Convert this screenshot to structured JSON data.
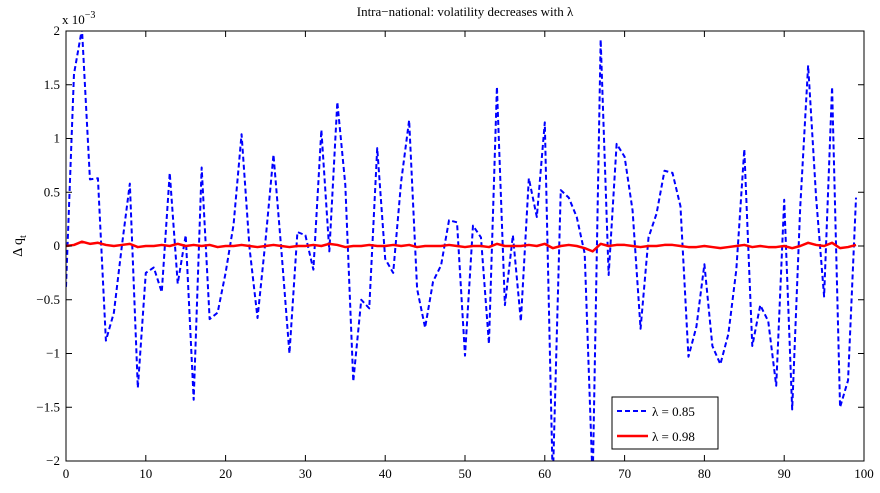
{
  "chart_data": {
    "type": "line",
    "title": "Intra−national: volatility decreases with λ",
    "xlabel": "",
    "ylabel": "Δ q",
    "ylabel_subscript": "t",
    "y_exponent_label": "x 10",
    "y_exponent_power": "−3",
    "xlim": [
      0,
      100
    ],
    "ylim": [
      -2,
      2
    ],
    "x_ticks": [
      0,
      10,
      20,
      30,
      40,
      50,
      60,
      70,
      80,
      90,
      100
    ],
    "y_ticks": [
      -2,
      -1.5,
      -1,
      -0.5,
      0,
      0.5,
      1,
      1.5,
      2
    ],
    "x_tick_labels": [
      "0",
      "10",
      "20",
      "30",
      "40",
      "50",
      "60",
      "70",
      "80",
      "90",
      "100"
    ],
    "y_tick_labels": [
      "−2",
      "−1.5",
      "−1",
      "−0.5",
      "0",
      "0.5",
      "1",
      "1.5",
      "2"
    ],
    "grid": false,
    "legend_position": "bottom-right",
    "series": [
      {
        "name": "λ = 0.85",
        "color": "#0000ff",
        "style": "dashed",
        "x": [
          0,
          1,
          2,
          3,
          4,
          5,
          6,
          7,
          8,
          9,
          10,
          11,
          12,
          13,
          14,
          15,
          16,
          17,
          18,
          19,
          20,
          21,
          22,
          23,
          24,
          25,
          26,
          27,
          28,
          29,
          30,
          31,
          32,
          33,
          34,
          35,
          36,
          37,
          38,
          39,
          40,
          41,
          42,
          43,
          44,
          45,
          46,
          47,
          48,
          49,
          50,
          51,
          52,
          53,
          54,
          55,
          56,
          57,
          58,
          59,
          60,
          61,
          62,
          63,
          64,
          65,
          66,
          67,
          68,
          69,
          70,
          71,
          72,
          73,
          74,
          75,
          76,
          77,
          78,
          79,
          80,
          81,
          82,
          83,
          84,
          85,
          86,
          87,
          88,
          89,
          90,
          91,
          92,
          93,
          94,
          95,
          96,
          97,
          98,
          99
        ],
        "values": [
          -0.38,
          1.6,
          2.02,
          0.62,
          0.63,
          -0.88,
          -0.62,
          0.0,
          0.58,
          -1.32,
          -0.25,
          -0.2,
          -0.43,
          0.68,
          -0.35,
          0.1,
          -1.43,
          0.73,
          -0.68,
          -0.62,
          -0.25,
          0.2,
          1.04,
          -0.02,
          -0.67,
          0.05,
          0.85,
          -0.05,
          -1.0,
          0.13,
          0.1,
          -0.22,
          1.08,
          -0.05,
          1.34,
          0.57,
          -1.26,
          -0.5,
          -0.58,
          0.91,
          -0.12,
          -0.25,
          0.6,
          1.17,
          -0.4,
          -0.76,
          -0.33,
          -0.18,
          0.24,
          0.22,
          -1.02,
          0.19,
          0.08,
          -0.91,
          1.48,
          -0.55,
          0.1,
          -0.7,
          0.63,
          0.27,
          1.15,
          -2.35,
          0.52,
          0.45,
          0.27,
          -0.07,
          -2.25,
          1.92,
          -0.27,
          0.95,
          0.83,
          0.33,
          -0.77,
          0.08,
          0.3,
          0.7,
          0.68,
          0.37,
          -1.03,
          -0.75,
          -0.17,
          -0.93,
          -1.1,
          -0.82,
          -0.22,
          0.9,
          -0.93,
          -0.55,
          -0.7,
          -1.3,
          0.43,
          -1.52,
          0.35,
          1.68,
          0.45,
          -0.47,
          1.48,
          -1.5,
          -1.25,
          0.45
        ]
      },
      {
        "name": "λ = 0.98",
        "color": "#ff0000",
        "style": "solid",
        "x": [
          0,
          1,
          2,
          3,
          4,
          5,
          6,
          7,
          8,
          9,
          10,
          11,
          12,
          13,
          14,
          15,
          16,
          17,
          18,
          19,
          20,
          21,
          22,
          23,
          24,
          25,
          26,
          27,
          28,
          29,
          30,
          31,
          32,
          33,
          34,
          35,
          36,
          37,
          38,
          39,
          40,
          41,
          42,
          43,
          44,
          45,
          46,
          47,
          48,
          49,
          50,
          51,
          52,
          53,
          54,
          55,
          56,
          57,
          58,
          59,
          60,
          61,
          62,
          63,
          64,
          65,
          66,
          67,
          68,
          69,
          70,
          71,
          72,
          73,
          74,
          75,
          76,
          77,
          78,
          79,
          80,
          81,
          82,
          83,
          84,
          85,
          86,
          87,
          88,
          89,
          90,
          91,
          92,
          93,
          94,
          95,
          96,
          97,
          98,
          99
        ],
        "values": [
          0.0,
          0.01,
          0.04,
          0.02,
          0.03,
          0.01,
          0.0,
          0.01,
          0.02,
          -0.01,
          0.0,
          0.0,
          0.01,
          0.0,
          0.02,
          0.0,
          0.01,
          0.0,
          0.01,
          -0.01,
          0.0,
          0.0,
          0.01,
          0.0,
          -0.01,
          0.0,
          0.01,
          0.0,
          -0.01,
          0.0,
          0.0,
          0.01,
          0.0,
          0.02,
          0.01,
          -0.01,
          0.0,
          0.0,
          0.01,
          0.0,
          0.0,
          0.01,
          0.0,
          0.01,
          -0.01,
          0.0,
          0.0,
          0.0,
          0.01,
          0.0,
          -0.01,
          0.0,
          0.0,
          -0.01,
          0.02,
          0.0,
          0.0,
          0.0,
          0.01,
          0.0,
          0.02,
          -0.02,
          0.0,
          0.01,
          0.0,
          -0.02,
          -0.05,
          0.02,
          0.0,
          0.01,
          0.01,
          0.0,
          -0.01,
          0.0,
          0.0,
          0.01,
          0.01,
          0.0,
          -0.01,
          -0.01,
          0.0,
          -0.01,
          -0.02,
          -0.01,
          0.0,
          0.01,
          -0.01,
          0.0,
          -0.01,
          -0.01,
          0.0,
          -0.02,
          0.0,
          0.03,
          0.01,
          0.0,
          0.03,
          -0.02,
          -0.01,
          0.01
        ]
      }
    ]
  }
}
